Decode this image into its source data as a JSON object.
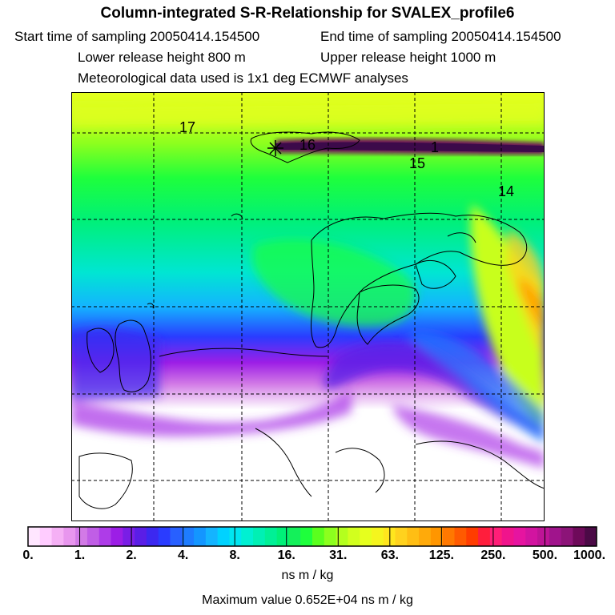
{
  "header": {
    "title": "Column-integrated S-R-Relationship for SVALEX_profile6",
    "start_time": "Start time of sampling 20050414.154500",
    "end_time": "End time of sampling 20050414.154500",
    "lower_release": "Lower release height  800 m",
    "upper_release": "Upper release height 1000 m",
    "met_data": "Meteorological data used is 1x1 deg ECMWF analyses"
  },
  "map": {
    "contour_labels": [
      "17",
      "16",
      "15",
      "14",
      "1"
    ],
    "colors": {
      "low": "#ffffff",
      "purple": "#9c1ee6",
      "blue": "#1e7cff",
      "cyan": "#00e6e6",
      "green": "#1eff3c",
      "yellow_green": "#c8ff1e",
      "yellow": "#ffd21e",
      "orange": "#ffa000",
      "plume": "#3c0a4a"
    }
  },
  "legend": {
    "tick_labels": [
      "0.",
      "1.",
      "2.",
      "4.",
      "8.",
      "16.",
      "31.",
      "63.",
      "125.",
      "250.",
      "500.",
      "1000."
    ],
    "bin_colors": [
      "#ffe6ff",
      "#ffccff",
      "#f5b0f5",
      "#e896ee",
      "#d27ae6",
      "#c05ee6",
      "#ae3ce8",
      "#9c1ee6",
      "#7a1ee6",
      "#5a1ee6",
      "#3c28f0",
      "#2a3cff",
      "#2860ff",
      "#1e7cff",
      "#1496ff",
      "#14b4ff",
      "#00d2ff",
      "#00e6f0",
      "#00f0d2",
      "#00f0b4",
      "#00f096",
      "#00f078",
      "#14f05a",
      "#1eff3c",
      "#5aff1e",
      "#8cff1e",
      "#b4ff1e",
      "#d2ff1e",
      "#e6ff1e",
      "#f5f51e",
      "#ffe61e",
      "#ffd21e",
      "#ffbe14",
      "#ffaa0a",
      "#ff9600",
      "#ff7800",
      "#ff5a00",
      "#ff3c00",
      "#ff1e3c",
      "#ff1e78",
      "#f0148c",
      "#e614a0",
      "#d214a0",
      "#be1496",
      "#a0148c",
      "#8c1478",
      "#6e0a5a",
      "#4b0a46"
    ],
    "units": "ns m / kg",
    "max_value": "Maximum value  0.652E+04 ns m / kg"
  }
}
